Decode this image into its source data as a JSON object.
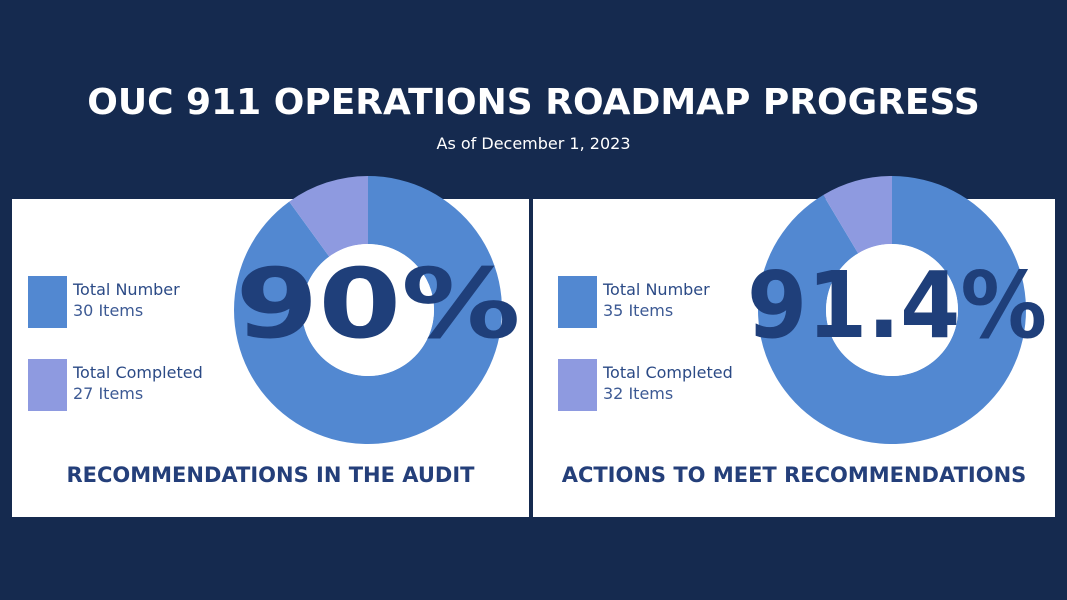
{
  "header": {
    "title": "OUC 911 OPERATIONS ROADMAP PROGRESS",
    "subtitle": "As of December 1, 2023"
  },
  "colors": {
    "background": "#152a4f",
    "total_color": "#5288d1",
    "completed_color": "#8e9ae0",
    "text_dark": "#1f3f7a"
  },
  "chart_data": [
    {
      "type": "pie",
      "style": "donut",
      "title": "RECOMMENDATIONS IN THE AUDIT",
      "center_label": "90%",
      "legend": [
        {
          "label": "Total Number",
          "value_text": "30 Items",
          "value": 30,
          "color": "#5288d1"
        },
        {
          "label": "Total Completed",
          "value_text": "27 Items",
          "value": 27,
          "color": "#8e9ae0"
        }
      ],
      "slices": [
        {
          "value": 27,
          "color": "#5288d1"
        },
        {
          "value": 3,
          "color": "#8e9ae0"
        }
      ],
      "percent_complete": 90
    },
    {
      "type": "pie",
      "style": "donut",
      "title": "ACTIONS TO MEET RECOMMENDATIONS",
      "center_label": "91.4%",
      "legend": [
        {
          "label": "Total Number",
          "value_text": "35 Items",
          "value": 35,
          "color": "#5288d1"
        },
        {
          "label": "Total Completed",
          "value_text": "32 Items",
          "value": 32,
          "color": "#8e9ae0"
        }
      ],
      "slices": [
        {
          "value": 32,
          "color": "#5288d1"
        },
        {
          "value": 3,
          "color": "#8e9ae0"
        }
      ],
      "percent_complete": 91.4
    }
  ]
}
